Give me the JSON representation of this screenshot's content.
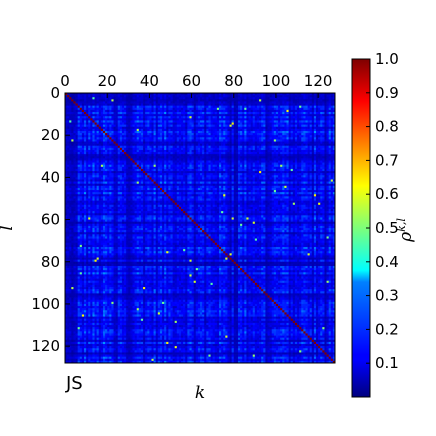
{
  "chart_data": {
    "type": "heatmap",
    "title": "",
    "panel_label": "JS",
    "xlabel": "k",
    "ylabel": "l",
    "x_tick_position": "top",
    "xlim": [
      0,
      128
    ],
    "ylim": [
      128,
      0
    ],
    "matrix_size": 128,
    "x_ticks": [
      0,
      20,
      40,
      60,
      80,
      100,
      120
    ],
    "y_ticks": [
      0,
      20,
      40,
      60,
      80,
      100,
      120
    ],
    "diagonal_value": 1.0,
    "off_diagonal_typical_range": [
      0.05,
      0.3
    ],
    "grid": false,
    "colorbar": {
      "label": "ρ^{k,l}",
      "label_main": "ρ",
      "label_sup": "k,l",
      "range": [
        0.0,
        1.0
      ],
      "ticks": [
        0.1,
        0.2,
        0.3,
        0.4,
        0.5,
        0.6,
        0.7,
        0.8,
        0.9,
        1.0
      ],
      "tick_labels": [
        "0.1",
        "0.2",
        "0.3",
        "0.4",
        "0.5",
        "0.6",
        "0.7",
        "0.8",
        "0.9",
        "1.0"
      ],
      "colormap": "jet",
      "placement": "right"
    }
  }
}
